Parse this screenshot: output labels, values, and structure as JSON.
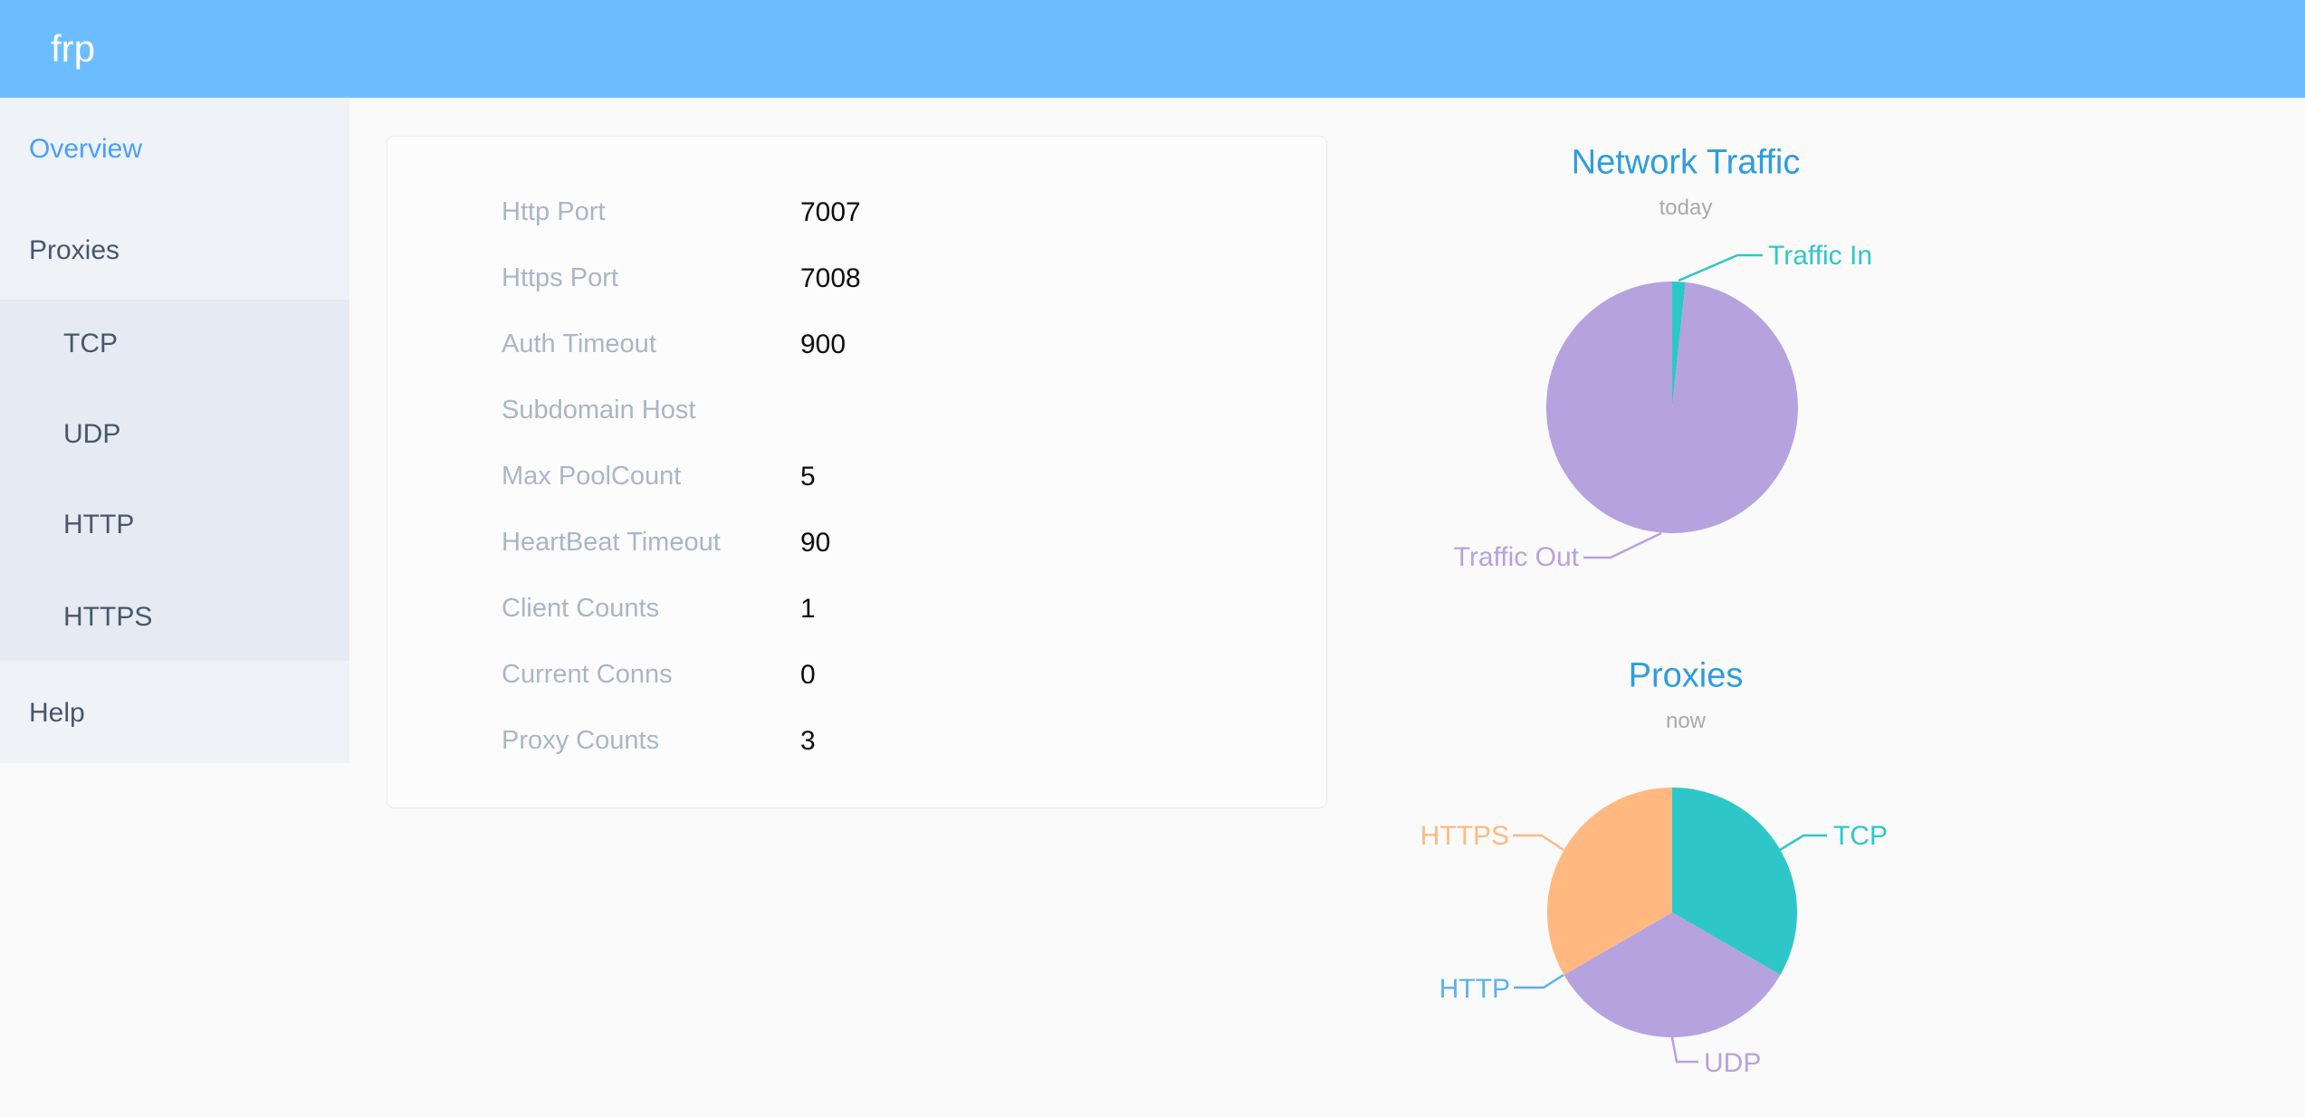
{
  "header": {
    "logo": "frp"
  },
  "sidebar": {
    "overview_label": "Overview",
    "proxies_label": "Proxies",
    "proxies_children": [
      "TCP",
      "UDP",
      "HTTP",
      "HTTPS"
    ],
    "help_label": "Help",
    "active_item": "Overview",
    "proxies_expanded": true
  },
  "server_info": {
    "rows": [
      {
        "label": "Http Port",
        "value": "7007"
      },
      {
        "label": "Https Port",
        "value": "7008"
      },
      {
        "label": "Auth Timeout",
        "value": "900"
      },
      {
        "label": "Subdomain Host",
        "value": ""
      },
      {
        "label": "Max PoolCount",
        "value": "5"
      },
      {
        "label": "HeartBeat Timeout",
        "value": "90"
      },
      {
        "label": "Client Counts",
        "value": "1"
      },
      {
        "label": "Current Conns",
        "value": "0"
      },
      {
        "label": "Proxy Counts",
        "value": "3"
      }
    ]
  },
  "chart_data": [
    {
      "type": "pie",
      "title": "Network Traffic",
      "subtitle": "today",
      "labels": [
        "Traffic In",
        "Traffic Out"
      ],
      "values": [
        1.7,
        98.3
      ],
      "values_unit": "percent-estimated-from-pie",
      "colors": [
        "#2ec7c9",
        "#b6a2de"
      ],
      "legend_position": "callout-labels"
    },
    {
      "type": "pie",
      "title": "Proxies",
      "subtitle": "now",
      "labels": [
        "TCP",
        "UDP",
        "HTTP",
        "HTTPS"
      ],
      "values": [
        1,
        1,
        0,
        1
      ],
      "colors": [
        "#2ec7c9",
        "#b6a2de",
        "#5ab1ef",
        "#ffb980"
      ],
      "legend_position": "callout-labels"
    }
  ],
  "colors": {
    "header_bg": "#6cbdfe",
    "sidebar_bg": "#eff2f7",
    "submenu_bg": "#e6eaf2",
    "active_link": "#49a0f8",
    "nav_text": "#48576a",
    "page_bg": "#fafafa",
    "card_border": "#e8ebf1",
    "config_label": "#a9b6c7",
    "chart_title": "#2f9cdb",
    "series_teal": "#2ec7c9",
    "series_purple": "#b6a2de",
    "series_blue": "#5ab1ef",
    "series_orange": "#ffb980"
  }
}
